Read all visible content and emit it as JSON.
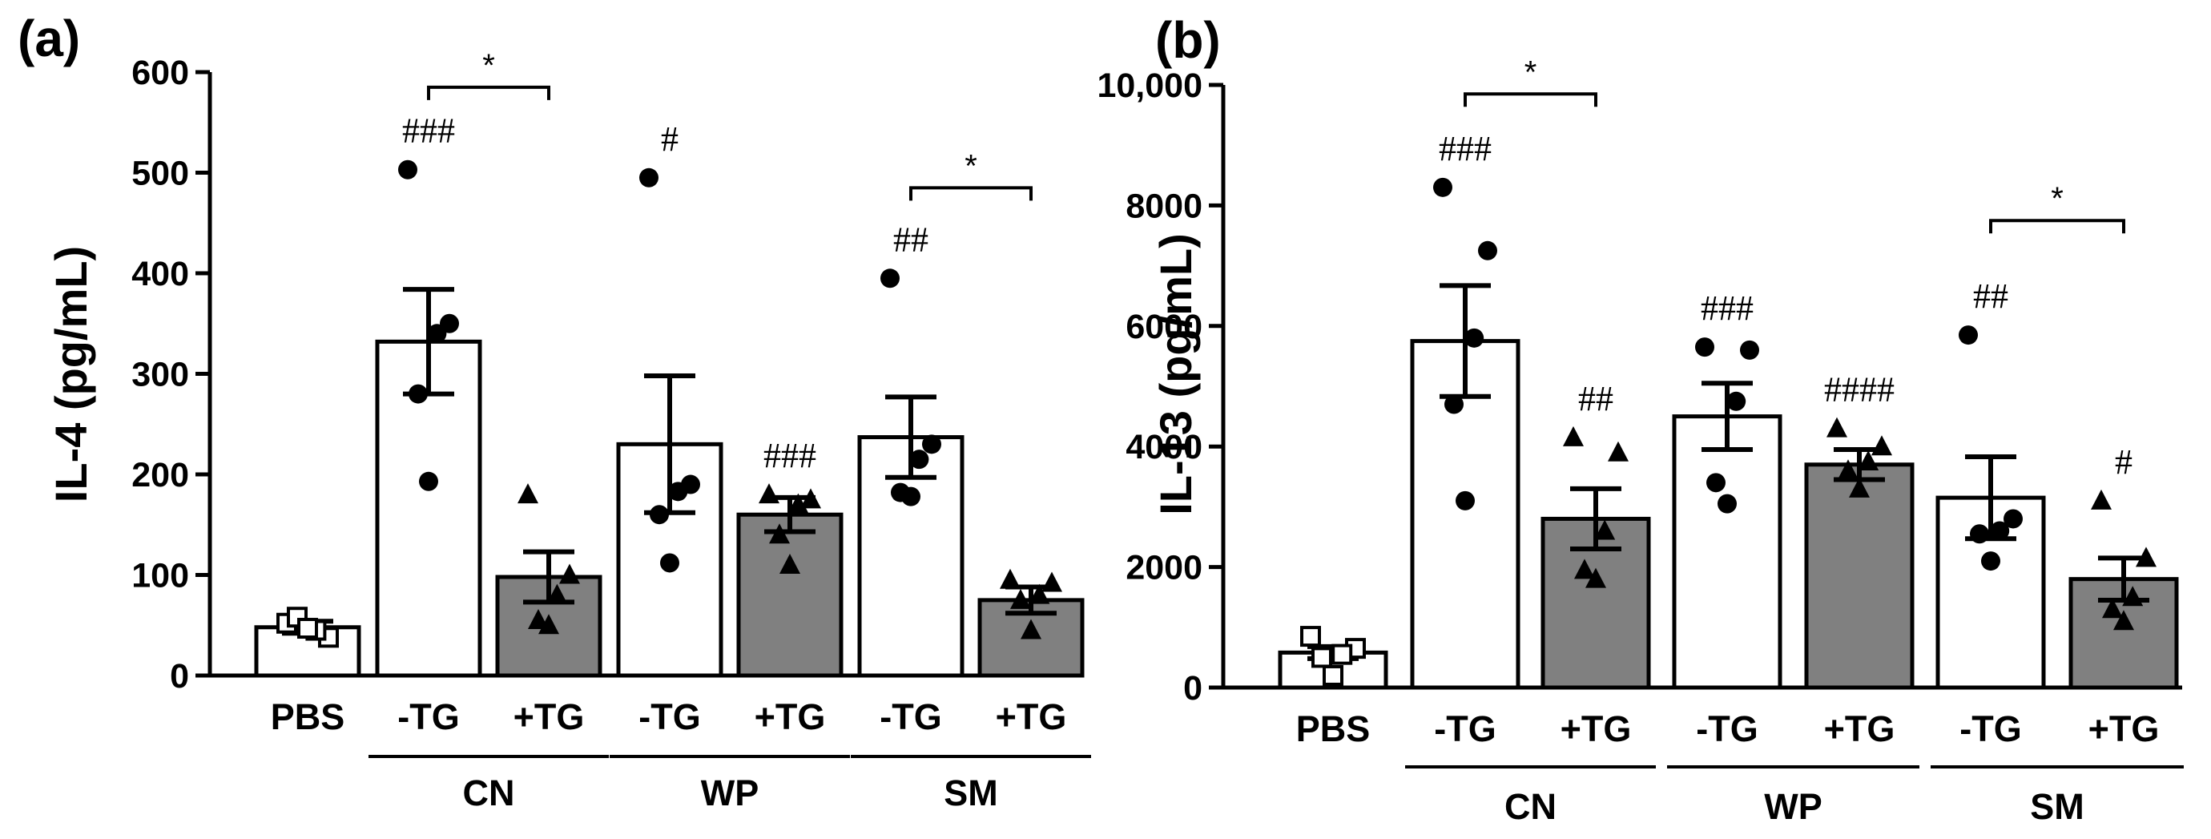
{
  "chart_data": [
    {
      "panel_label": "(a)",
      "type": "bar",
      "ylabel": "IL-4 (pg/mL)",
      "ylim": [
        0,
        600
      ],
      "yticks": [
        0,
        100,
        200,
        300,
        400,
        500,
        600
      ],
      "ytick_labels": [
        "0",
        "100",
        "200",
        "300",
        "400",
        "500",
        "600"
      ],
      "categories": [
        "PBS",
        "-TG",
        "+TG",
        "-TG",
        "+TG",
        "-TG",
        "+TG"
      ],
      "groups": [
        {
          "label": "CN",
          "bars": [
            1,
            2
          ]
        },
        {
          "label": "WP",
          "bars": [
            3,
            4
          ]
        },
        {
          "label": "SM",
          "bars": [
            5,
            6
          ]
        }
      ],
      "bars": [
        {
          "mean": 48,
          "sem": 6,
          "fill": "white",
          "marker": "square",
          "points": [
            52,
            38,
            45,
            58,
            47
          ],
          "sig": ""
        },
        {
          "mean": 332,
          "sem": 52,
          "fill": "white",
          "marker": "circle",
          "points": [
            503,
            350,
            340,
            280,
            193
          ],
          "sig": "###"
        },
        {
          "mean": 98,
          "sem": 25,
          "fill": "grey",
          "marker": "triangle",
          "points": [
            180,
            100,
            80,
            55,
            50
          ],
          "sig": ""
        },
        {
          "mean": 230,
          "sem": 68,
          "fill": "white",
          "marker": "circle",
          "points": [
            495,
            190,
            183,
            160,
            112
          ],
          "sig": "#"
        },
        {
          "mean": 160,
          "sem": 17,
          "fill": "grey",
          "marker": "triangle",
          "points": [
            180,
            175,
            170,
            140,
            110
          ],
          "sig": "###"
        },
        {
          "mean": 237,
          "sem": 40,
          "fill": "white",
          "marker": "circle",
          "points": [
            395,
            230,
            215,
            182,
            178
          ],
          "sig": "##"
        },
        {
          "mean": 75,
          "sem": 13,
          "fill": "grey",
          "marker": "triangle",
          "points": [
            95,
            92,
            80,
            75,
            45
          ],
          "sig": ""
        }
      ],
      "brackets": [
        {
          "from": 1,
          "to": 2,
          "label": "*",
          "y": 585
        },
        {
          "from": 5,
          "to": 6,
          "label": "*",
          "y": 485
        }
      ]
    },
    {
      "panel_label": "(b)",
      "type": "bar",
      "ylabel": "IL-13 (pg/mL)",
      "ylim": [
        0,
        10000
      ],
      "yticks": [
        0,
        2000,
        4000,
        6000,
        8000,
        10000
      ],
      "ytick_labels": [
        "0",
        "2000",
        "4000",
        "6000",
        "8000",
        "10,000"
      ],
      "categories": [
        "PBS",
        "-TG",
        "+TG",
        "-TG",
        "+TG",
        "-TG",
        "+TG"
      ],
      "groups": [
        {
          "label": "CN",
          "bars": [
            1,
            2
          ]
        },
        {
          "label": "WP",
          "bars": [
            3,
            4
          ]
        },
        {
          "label": "SM",
          "bars": [
            5,
            6
          ]
        }
      ],
      "bars": [
        {
          "mean": 580,
          "sem": 100,
          "fill": "white",
          "marker": "square",
          "points": [
            850,
            650,
            550,
            500,
            200
          ],
          "sig": ""
        },
        {
          "mean": 5750,
          "sem": 920,
          "fill": "white",
          "marker": "circle",
          "points": [
            8300,
            7250,
            5800,
            4700,
            3100
          ],
          "sig": "###"
        },
        {
          "mean": 2800,
          "sem": 500,
          "fill": "grey",
          "marker": "triangle",
          "points": [
            4150,
            3900,
            2600,
            1950,
            1800
          ],
          "sig": "##"
        },
        {
          "mean": 4500,
          "sem": 550,
          "fill": "white",
          "marker": "circle",
          "points": [
            5650,
            5600,
            4750,
            3400,
            3050
          ],
          "sig": "###"
        },
        {
          "mean": 3700,
          "sem": 250,
          "fill": "grey",
          "marker": "triangle",
          "points": [
            4300,
            4000,
            3750,
            3600,
            3300
          ],
          "sig": "####"
        },
        {
          "mean": 3150,
          "sem": 680,
          "fill": "white",
          "marker": "circle",
          "points": [
            5850,
            2800,
            2600,
            2550,
            2100
          ],
          "sig": "##"
        },
        {
          "mean": 1800,
          "sem": 350,
          "fill": "grey",
          "marker": "triangle",
          "points": [
            3100,
            2150,
            1500,
            1300,
            1100
          ],
          "sig": "#"
        }
      ],
      "brackets": [
        {
          "from": 1,
          "to": 2,
          "label": "*",
          "y": 9850
        },
        {
          "from": 5,
          "to": 6,
          "label": "*",
          "y": 7750
        }
      ]
    }
  ],
  "colors": {
    "bar_white": "#ffffff",
    "bar_grey": "#808080",
    "ink": "#000000"
  }
}
